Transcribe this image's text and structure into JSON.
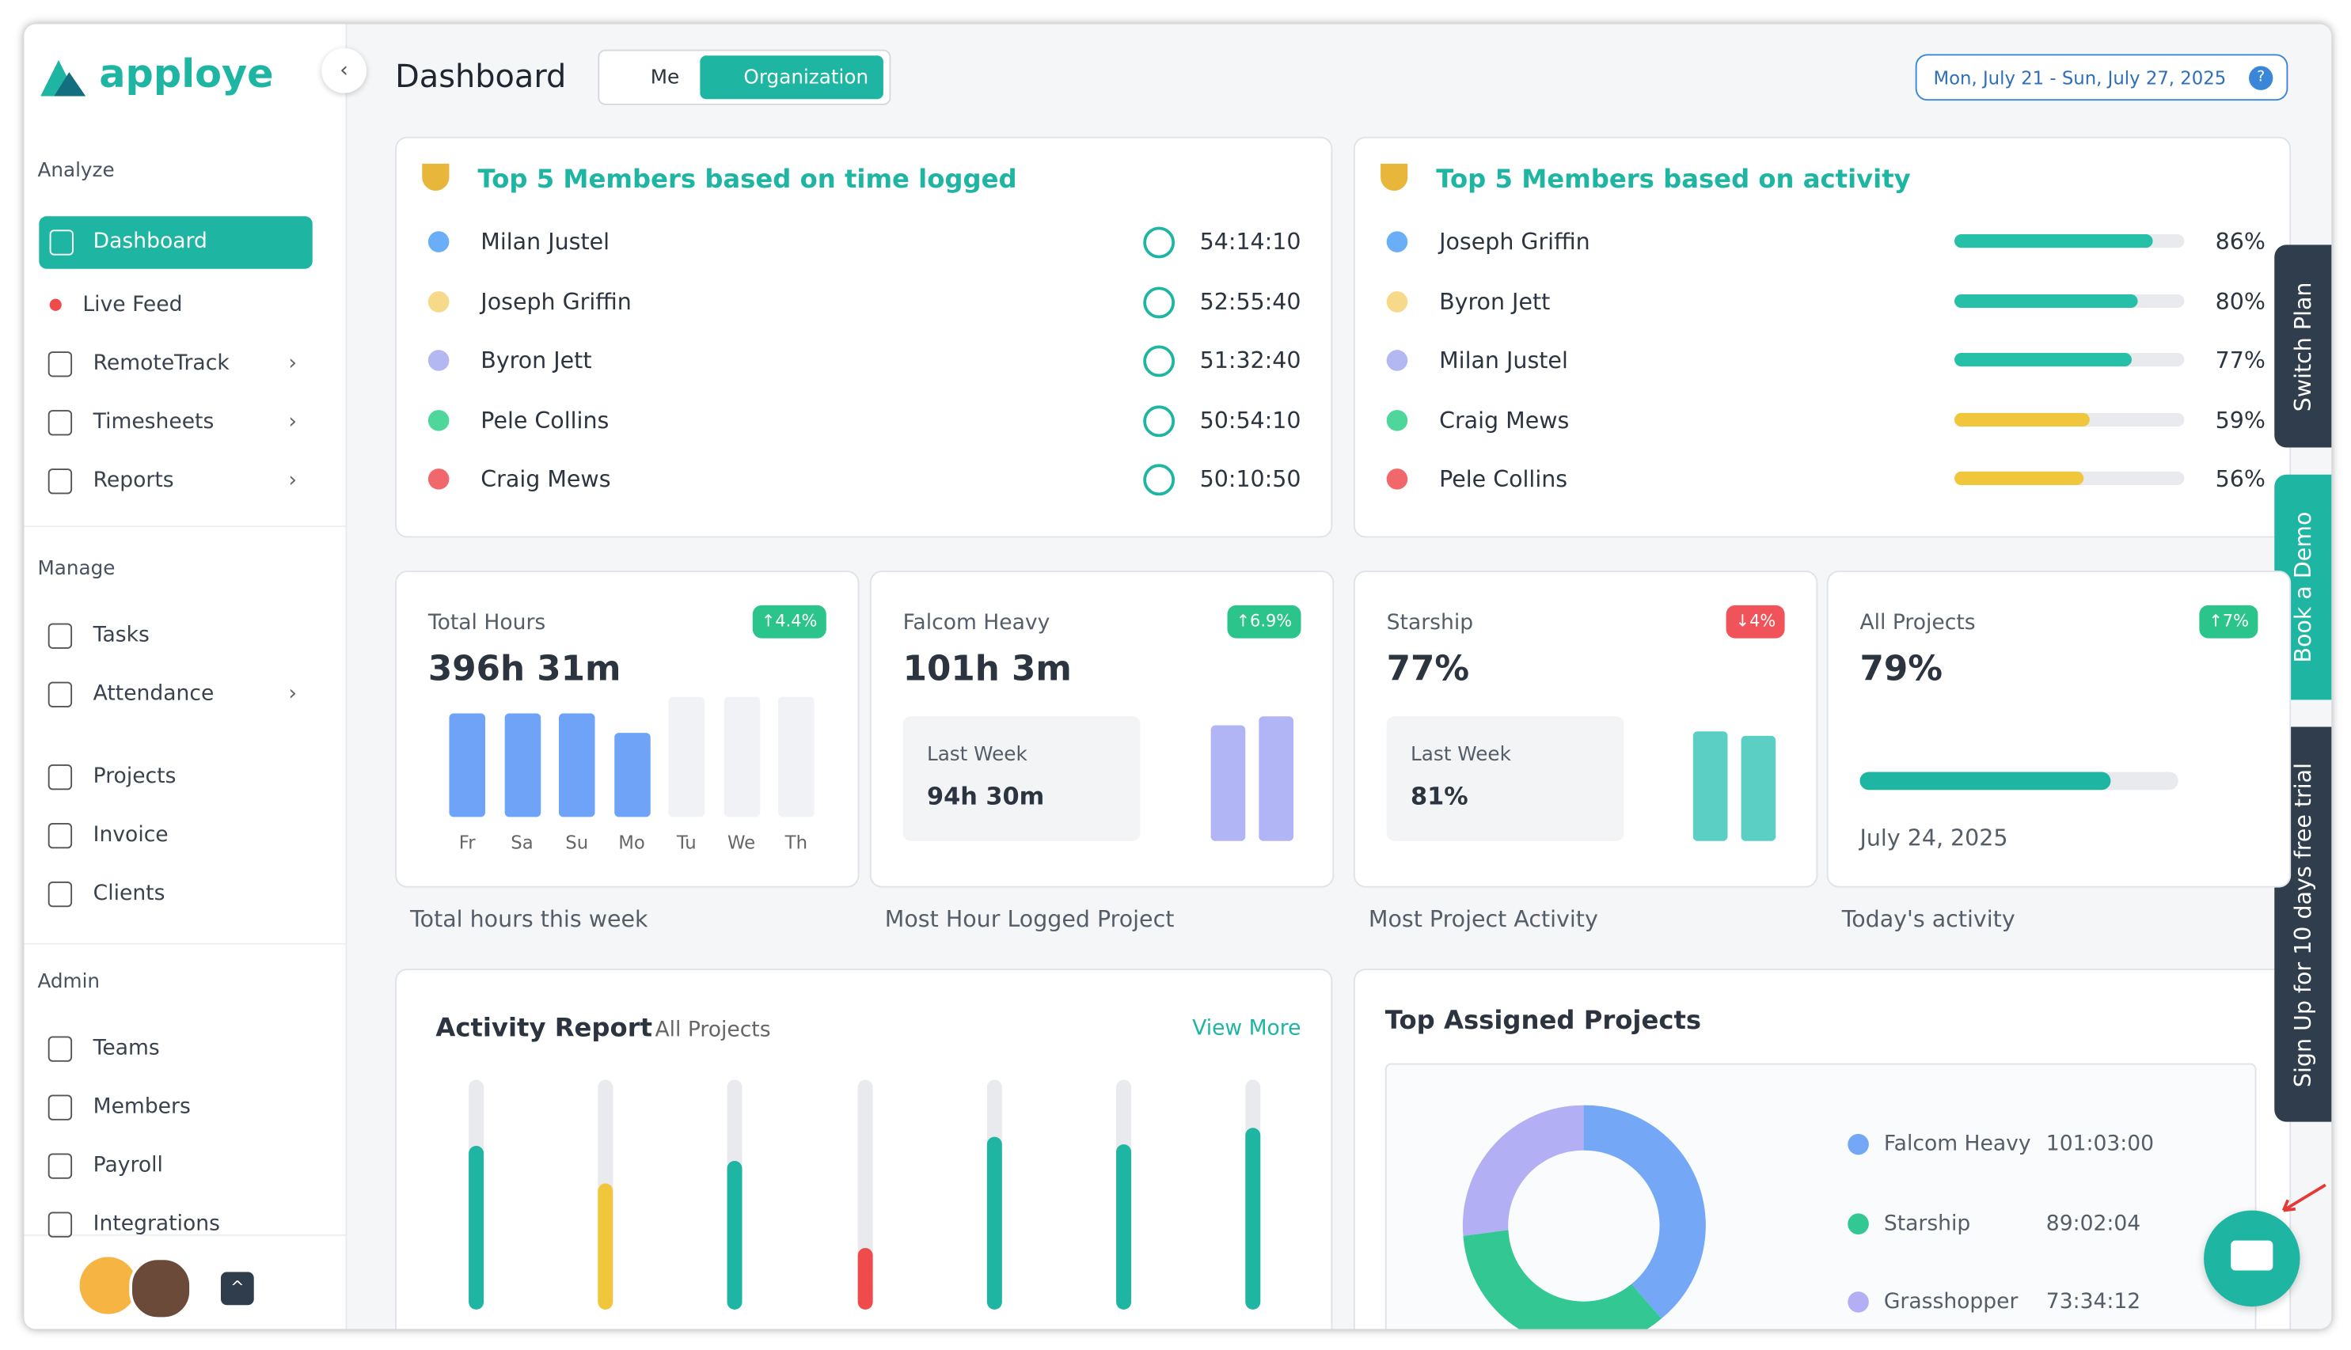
{
  "sidebar": {
    "brand": "apploye",
    "sections": [
      {
        "title": "Analyze",
        "items": [
          "Dashboard",
          "Live Feed",
          "RemoteTrack",
          "Timesheets",
          "Reports"
        ]
      },
      {
        "title": "Manage",
        "items": [
          "Tasks",
          "Attendance",
          "Projects",
          "Invoice",
          "Clients"
        ]
      },
      {
        "title": "Admin",
        "items": [
          "Teams",
          "Members",
          "Payroll",
          "Integrations"
        ]
      }
    ]
  },
  "header": {
    "title": "Dashboard",
    "toggle": [
      "Me",
      "Organization"
    ],
    "date_range": "Mon, July 21 - Sun, July 27, 2025",
    "help": "?"
  },
  "top_time": {
    "title": "Top 5 Members based on time logged",
    "rows": [
      {
        "name": "Milan Justel",
        "time": "54:14:10",
        "color": "#6aaef7"
      },
      {
        "name": "Joseph Griffin",
        "time": "52:55:40",
        "color": "#f7d98a"
      },
      {
        "name": "Byron Jett",
        "time": "51:32:40",
        "color": "#b3b8f3"
      },
      {
        "name": "Pele Collins",
        "time": "50:54:10",
        "color": "#4fd69a"
      },
      {
        "name": "Craig Mews",
        "time": "50:10:50",
        "color": "#f0686b"
      }
    ]
  },
  "top_activity": {
    "title": "Top 5 Members based on activity",
    "rows": [
      {
        "name": "Joseph Griffin",
        "value": 86,
        "label": "86%",
        "color": "#6aaef7",
        "bar_color": "#26bfa8"
      },
      {
        "name": "Byron Jett",
        "value": 80,
        "label": "80%",
        "color": "#f7d98a",
        "bar_color": "#26bfa8"
      },
      {
        "name": "Milan Justel",
        "value": 77,
        "label": "77%",
        "color": "#b3b8f3",
        "bar_color": "#26bfa8"
      },
      {
        "name": "Craig Mews",
        "value": 59,
        "label": "59%",
        "color": "#4fd69a",
        "bar_color": "#f0c63c"
      },
      {
        "name": "Pele Collins",
        "value": 56,
        "label": "56%",
        "color": "#f0686b",
        "bar_color": "#f0c63c"
      }
    ]
  },
  "cards": [
    {
      "title": "Total Hours",
      "value": "396h 31m",
      "change": "↑4.4%",
      "change_color": "#2bc48a",
      "caption": "Total hours this week",
      "days": [
        "Fr",
        "Sa",
        "Su",
        "Mo",
        "Tu",
        "We",
        "Th"
      ]
    },
    {
      "title": "Falcom Heavy",
      "value": "101h 3m",
      "change": "↑6.9%",
      "change_color": "#2bc48a",
      "caption": "Most Hour Logged Project",
      "last_week_label": "Last Week",
      "last_week": "94h 30m"
    },
    {
      "title": "Starship",
      "value": "77%",
      "change": "↓4%",
      "change_color": "#f0545a",
      "caption": "Most Project Activity",
      "last_week_label": "Last Week",
      "last_week": "81%"
    },
    {
      "title": "All Projects",
      "value": "79%",
      "percent": 79,
      "change": "↑7%",
      "change_color": "#2bc48a",
      "caption": "Today's activity",
      "date": "July 24, 2025"
    }
  ],
  "activity_report": {
    "title": "Activity Report",
    "filter": "All Projects",
    "link": "View More",
    "values": [
      71,
      55,
      65,
      27,
      75,
      72,
      79
    ],
    "colors": [
      "#1fb5a3",
      "#f0c63c",
      "#1fb5a3",
      "#ef4b4b",
      "#1fb5a3",
      "#1fb5a3",
      "#1fb5a3"
    ]
  },
  "top_projects": {
    "title": "Top Assigned Projects",
    "rows": [
      {
        "name": "Falcom Heavy",
        "time": "101:03:00",
        "color": "#74a8f7"
      },
      {
        "name": "Starship",
        "time": "89:02:04",
        "color": "#33c893"
      },
      {
        "name": "Grasshopper",
        "time": "73:34:12",
        "color": "#b3aff4"
      }
    ]
  },
  "side_tabs": [
    "Switch Plan",
    "Book a Demo",
    "Sign Up for 10 days free trial"
  ]
}
